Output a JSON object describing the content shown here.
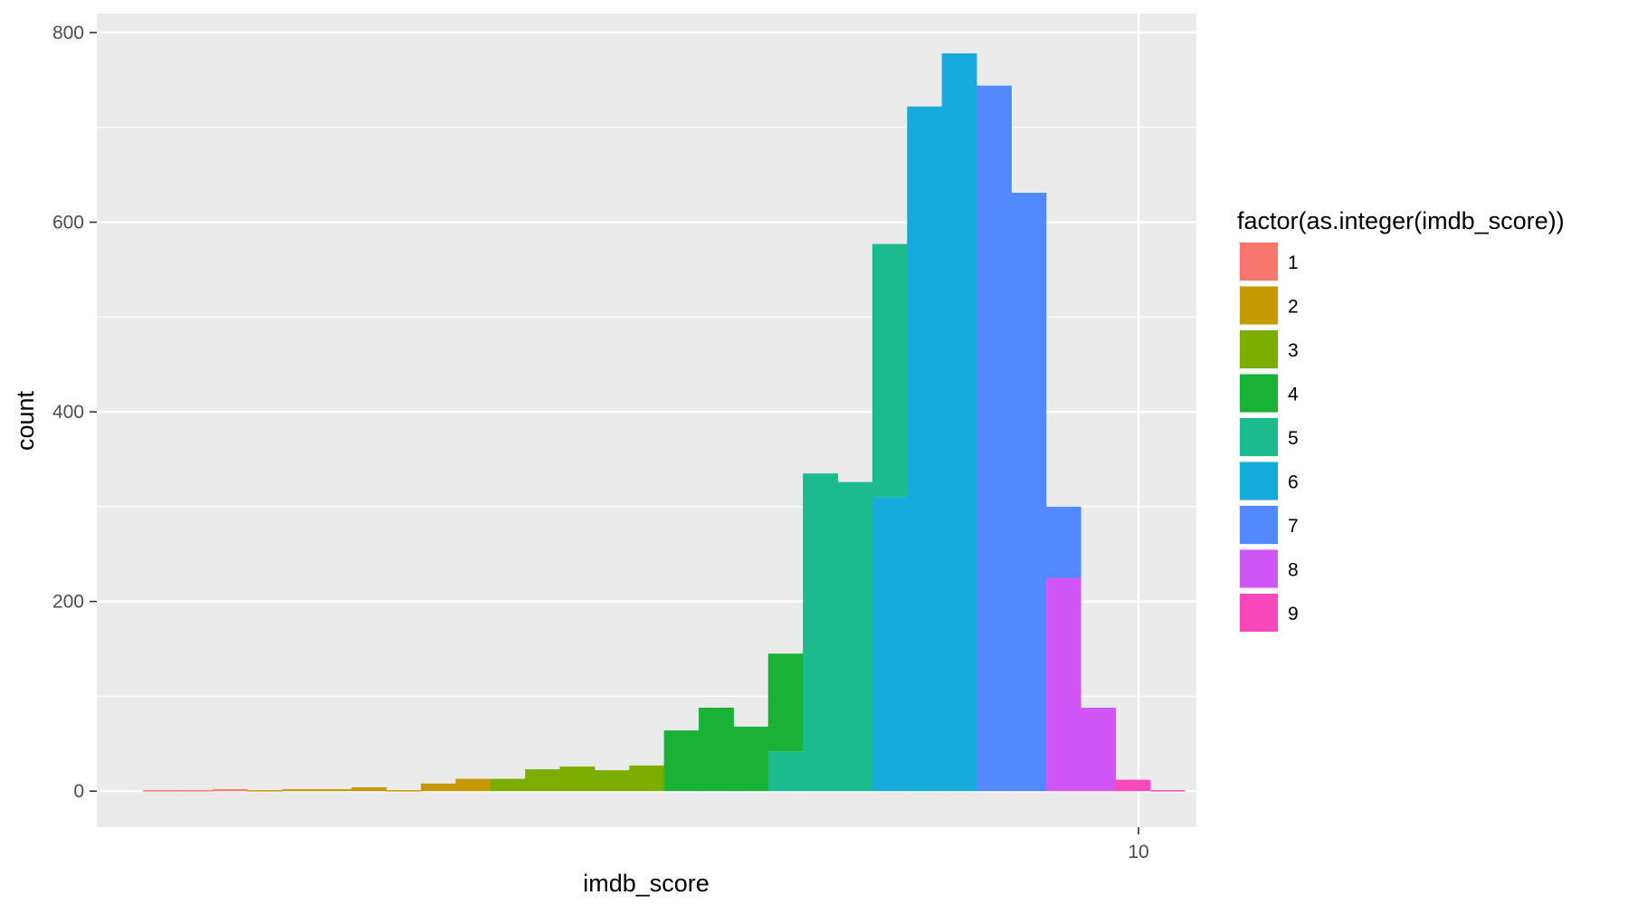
{
  "chart_data": {
    "type": "bar",
    "subtype": "stacked-histogram",
    "xlabel": "imdb_score",
    "ylabel": "count",
    "x_ticks": [
      10
    ],
    "y_ticks": [
      0,
      200,
      400,
      600,
      800
    ],
    "xlim": [
      1.0,
      10.5
    ],
    "ylim": [
      -38,
      820
    ],
    "bin_width": 0.3,
    "grid": true,
    "legend": {
      "title": "factor(as.integer(imdb_score))",
      "placement": "right",
      "entries": [
        {
          "label": "1",
          "color": "#F8766D"
        },
        {
          "label": "2",
          "color": "#C49A00"
        },
        {
          "label": "3",
          "color": "#7CAE00"
        },
        {
          "label": "4",
          "color": "#19B236"
        },
        {
          "label": "5",
          "color": "#1CBA8C"
        },
        {
          "label": "6",
          "color": "#16AADD"
        },
        {
          "label": "7",
          "color": "#5188FF"
        },
        {
          "label": "8",
          "color": "#D156F6"
        },
        {
          "label": "9",
          "color": "#F748BC"
        }
      ]
    },
    "bins": [
      {
        "x0": 1.4,
        "segments": [
          {
            "group": "1",
            "value": 1
          }
        ]
      },
      {
        "x0": 1.7,
        "segments": [
          {
            "group": "1",
            "value": 1
          }
        ]
      },
      {
        "x0": 2.0,
        "segments": [
          {
            "group": "1",
            "value": 2
          }
        ]
      },
      {
        "x0": 2.3,
        "segments": [
          {
            "group": "2",
            "value": 1
          }
        ]
      },
      {
        "x0": 2.6,
        "segments": [
          {
            "group": "2",
            "value": 2
          }
        ]
      },
      {
        "x0": 2.9,
        "segments": [
          {
            "group": "2",
            "value": 2
          }
        ]
      },
      {
        "x0": 3.2,
        "segments": [
          {
            "group": "2",
            "value": 4
          }
        ]
      },
      {
        "x0": 3.5,
        "segments": [
          {
            "group": "2",
            "value": 1
          }
        ]
      },
      {
        "x0": 3.8,
        "segments": [
          {
            "group": "2",
            "value": 8
          }
        ]
      },
      {
        "x0": 4.1,
        "segments": [
          {
            "group": "2",
            "value": 13
          }
        ]
      },
      {
        "x0": 4.4,
        "segments": [
          {
            "group": "3",
            "value": 13
          }
        ]
      },
      {
        "x0": 4.7,
        "segments": [
          {
            "group": "3",
            "value": 23
          }
        ]
      },
      {
        "x0": 5.0,
        "segments": [
          {
            "group": "3",
            "value": 26
          }
        ]
      },
      {
        "x0": 5.3,
        "segments": [
          {
            "group": "3",
            "value": 22
          }
        ]
      },
      {
        "x0": 5.6,
        "segments": [
          {
            "group": "3",
            "value": 27
          }
        ]
      },
      {
        "x0": 5.9,
        "segments": [
          {
            "group": "4",
            "value": 64
          }
        ]
      },
      {
        "x0": 6.2,
        "segments": [
          {
            "group": "4",
            "value": 88
          }
        ]
      },
      {
        "x0": 6.5,
        "segments": [
          {
            "group": "4",
            "value": 68
          }
        ]
      },
      {
        "x0": 6.8,
        "segments": [
          {
            "group": "5",
            "value": 42
          },
          {
            "group": "4",
            "value": 103
          }
        ]
      },
      {
        "x0": 7.1,
        "segments": [
          {
            "group": "5",
            "value": 335
          }
        ]
      },
      {
        "x0": 7.4,
        "segments": [
          {
            "group": "5",
            "value": 326
          }
        ]
      },
      {
        "x0": 7.7,
        "segments": [
          {
            "group": "6",
            "value": 310
          },
          {
            "group": "5",
            "value": 267
          }
        ]
      },
      {
        "x0": 8.0,
        "segments": [
          {
            "group": "6",
            "value": 722
          }
        ]
      },
      {
        "x0": 8.3,
        "segments": [
          {
            "group": "6",
            "value": 778
          }
        ]
      },
      {
        "x0": 8.6,
        "segments": [
          {
            "group": "7",
            "value": 744
          }
        ]
      },
      {
        "x0": 8.9,
        "segments": [
          {
            "group": "7",
            "value": 631
          }
        ]
      },
      {
        "x0": 9.2,
        "segments": [
          {
            "group": "8",
            "value": 225
          },
          {
            "group": "7",
            "value": 75
          }
        ]
      },
      {
        "x0": 9.5,
        "segments": [
          {
            "group": "8",
            "value": 88
          }
        ]
      },
      {
        "x0": 9.8,
        "segments": [
          {
            "group": "9",
            "value": 12
          }
        ]
      },
      {
        "x0": 10.1,
        "segments": [
          {
            "group": "9",
            "value": 1
          }
        ]
      }
    ]
  }
}
